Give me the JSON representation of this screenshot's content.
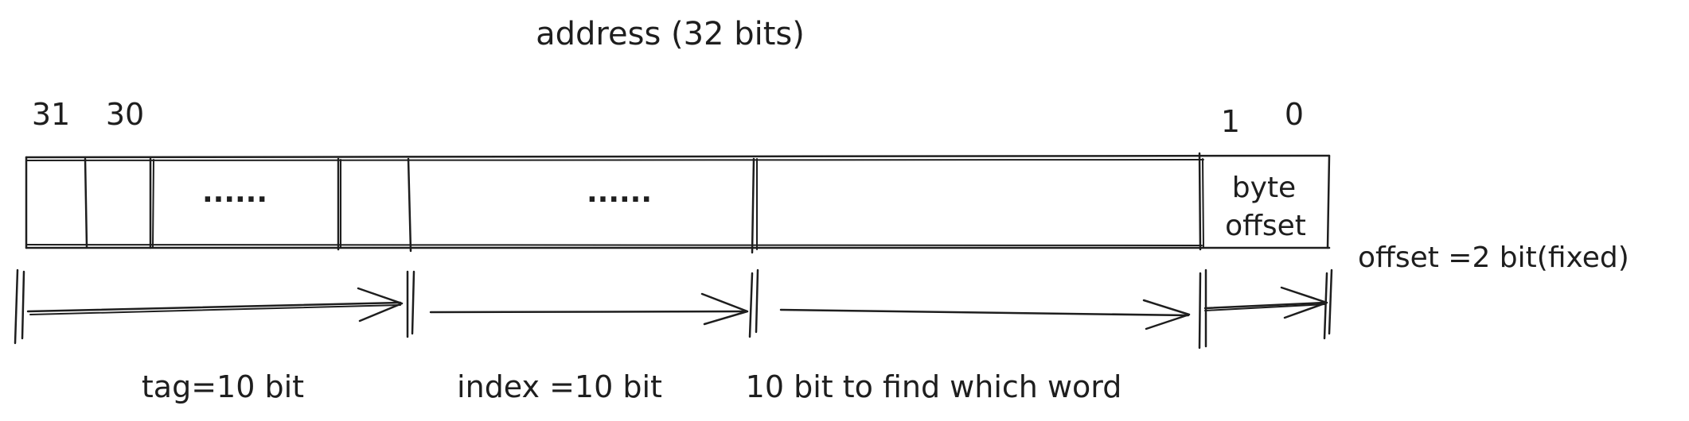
{
  "title": "address (32 bits)",
  "bit_labels": {
    "b31": "31",
    "b30": "30",
    "b1": "1",
    "b0": "0"
  },
  "cells": {
    "ellipsis_left": "......",
    "ellipsis_middle": "......",
    "byte_offset_line1": "byte",
    "byte_offset_line2": "offset"
  },
  "side_note": "offset =2 bit(fixed)",
  "field_labels": {
    "tag": "tag=10 bit",
    "index": "index =10 bit",
    "word": "10 bit to find which word"
  }
}
